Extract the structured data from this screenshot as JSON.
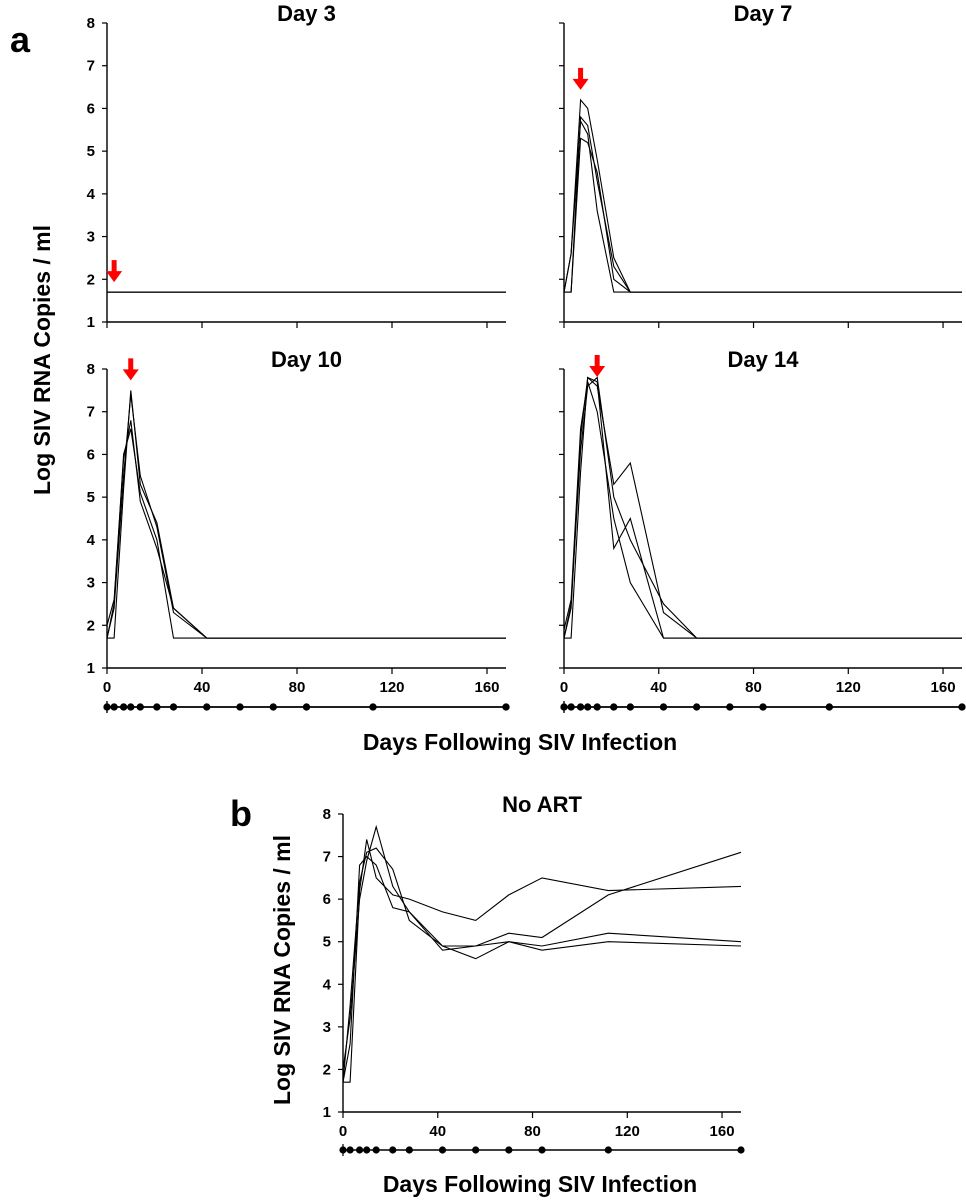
{
  "figure": {
    "panel_a_letter": "a",
    "panel_b_letter": "b",
    "ylabel": "Log SIV RNA Copies / ml",
    "xlabel": "Days Following SIV Infection"
  },
  "colors": {
    "line": "#000000",
    "arrow": "#ff0000",
    "dot": "#000000"
  },
  "chart_data": [
    {
      "type": "line",
      "title": "Day 3",
      "xlim": [
        0,
        168
      ],
      "ylim": [
        1,
        8
      ],
      "xticks": [
        0,
        40,
        80,
        120,
        160
      ],
      "yticks": [
        1,
        2,
        3,
        4,
        5,
        6,
        7,
        8
      ],
      "show_x_ticklabels": false,
      "show_y_ticklabels": true,
      "art_start_day": 3,
      "sample_days": [
        0,
        3,
        7,
        10,
        14,
        21,
        28,
        42,
        56,
        70,
        84,
        112,
        168
      ],
      "series": [
        {
          "x": [
            0,
            168
          ],
          "y": [
            1.7,
            1.7
          ]
        },
        {
          "x": [
            0,
            168
          ],
          "y": [
            1.7,
            1.7
          ]
        },
        {
          "x": [
            0,
            168
          ],
          "y": [
            1.7,
            1.7
          ]
        },
        {
          "x": [
            0,
            168
          ],
          "y": [
            1.7,
            1.7
          ]
        }
      ]
    },
    {
      "type": "line",
      "title": "Day 7",
      "xlim": [
        0,
        168
      ],
      "ylim": [
        1,
        8
      ],
      "xticks": [
        0,
        40,
        80,
        120,
        160
      ],
      "yticks": [
        1,
        2,
        3,
        4,
        5,
        6,
        7,
        8
      ],
      "show_x_ticklabels": false,
      "show_y_ticklabels": false,
      "art_start_day": 7,
      "sample_days": [
        0,
        3,
        7,
        10,
        14,
        21,
        28,
        42,
        56,
        70,
        84,
        112,
        168
      ],
      "series": [
        {
          "x": [
            0,
            3,
            7,
            10,
            14,
            21,
            28,
            168
          ],
          "y": [
            1.7,
            2.6,
            6.2,
            6.0,
            4.8,
            2.5,
            1.7,
            1.7
          ]
        },
        {
          "x": [
            0,
            3,
            7,
            10,
            14,
            21,
            28,
            168
          ],
          "y": [
            1.7,
            1.7,
            5.8,
            5.6,
            4.3,
            2.3,
            1.7,
            1.7
          ]
        },
        {
          "x": [
            0,
            3,
            7,
            10,
            14,
            21,
            28,
            168
          ],
          "y": [
            1.7,
            1.7,
            5.3,
            5.2,
            4.5,
            2.0,
            1.7,
            1.7
          ]
        },
        {
          "x": [
            0,
            3,
            7,
            10,
            14,
            21,
            28,
            168
          ],
          "y": [
            1.7,
            2.6,
            5.7,
            5.4,
            3.6,
            1.7,
            1.7,
            1.7
          ]
        }
      ]
    },
    {
      "type": "line",
      "title": "Day 10",
      "xlim": [
        0,
        168
      ],
      "ylim": [
        1,
        8
      ],
      "xticks": [
        0,
        40,
        80,
        120,
        160
      ],
      "yticks": [
        1,
        2,
        3,
        4,
        5,
        6,
        7,
        8
      ],
      "show_x_ticklabels": true,
      "show_y_ticklabels": true,
      "art_start_day": 10,
      "sample_days": [
        0,
        3,
        7,
        10,
        14,
        21,
        28,
        42,
        56,
        70,
        84,
        112,
        168
      ],
      "series": [
        {
          "x": [
            0,
            3,
            7,
            10,
            14,
            21,
            28,
            42,
            168
          ],
          "y": [
            1.7,
            1.7,
            5.2,
            7.5,
            5.3,
            4.4,
            2.4,
            1.7,
            1.7
          ]
        },
        {
          "x": [
            0,
            3,
            7,
            10,
            14,
            21,
            28,
            42,
            168
          ],
          "y": [
            1.7,
            2.5,
            6.0,
            6.6,
            5.1,
            4.0,
            1.7,
            1.7,
            1.7
          ]
        },
        {
          "x": [
            0,
            3,
            7,
            10,
            14,
            21,
            28,
            42,
            168
          ],
          "y": [
            2.0,
            2.6,
            5.9,
            6.8,
            4.9,
            3.8,
            2.4,
            1.7,
            1.7
          ]
        },
        {
          "x": [
            0,
            3,
            7,
            10,
            14,
            21,
            28,
            42,
            168
          ],
          "y": [
            1.7,
            2.4,
            5.5,
            7.4,
            5.5,
            4.3,
            2.3,
            1.7,
            1.7
          ]
        }
      ]
    },
    {
      "type": "line",
      "title": "Day 14",
      "xlim": [
        0,
        168
      ],
      "ylim": [
        1,
        8
      ],
      "xticks": [
        0,
        40,
        80,
        120,
        160
      ],
      "yticks": [
        1,
        2,
        3,
        4,
        5,
        6,
        7,
        8
      ],
      "show_x_ticklabels": true,
      "show_y_ticklabels": false,
      "art_start_day": 14,
      "sample_days": [
        0,
        3,
        7,
        10,
        14,
        21,
        28,
        42,
        56,
        70,
        84,
        112,
        168
      ],
      "series": [
        {
          "x": [
            0,
            3,
            7,
            10,
            14,
            21,
            28,
            42,
            56,
            168
          ],
          "y": [
            1.7,
            1.7,
            5.6,
            7.8,
            7.6,
            5.3,
            5.8,
            2.3,
            1.7,
            1.7
          ]
        },
        {
          "x": [
            0,
            3,
            7,
            10,
            14,
            21,
            28,
            42,
            56,
            168
          ],
          "y": [
            1.7,
            2.4,
            6.4,
            7.8,
            7.7,
            3.8,
            4.5,
            1.7,
            1.7,
            1.7
          ]
        },
        {
          "x": [
            0,
            3,
            7,
            10,
            14,
            21,
            28,
            42,
            56,
            168
          ],
          "y": [
            1.9,
            2.6,
            6.6,
            7.7,
            7.0,
            4.5,
            3.0,
            1.7,
            1.7,
            1.7
          ]
        },
        {
          "x": [
            0,
            3,
            7,
            10,
            14,
            21,
            28,
            42,
            56,
            168
          ],
          "y": [
            1.7,
            2.5,
            6.1,
            7.6,
            7.8,
            5.0,
            4.0,
            2.5,
            1.7,
            1.7
          ]
        }
      ]
    },
    {
      "type": "line",
      "title": "No ART",
      "xlim": [
        0,
        168
      ],
      "ylim": [
        1,
        8
      ],
      "xticks": [
        0,
        40,
        80,
        120,
        160
      ],
      "yticks": [
        1,
        2,
        3,
        4,
        5,
        6,
        7,
        8
      ],
      "show_x_ticklabels": true,
      "show_y_ticklabels": true,
      "sample_days": [
        0,
        3,
        7,
        10,
        14,
        21,
        28,
        42,
        56,
        70,
        84,
        112,
        168
      ],
      "series": [
        {
          "x": [
            0,
            3,
            7,
            10,
            14,
            21,
            28,
            42,
            56,
            70,
            84,
            112,
            168
          ],
          "y": [
            1.7,
            1.7,
            6.2,
            7.4,
            6.5,
            6.1,
            6.0,
            5.7,
            5.5,
            6.1,
            6.5,
            6.2,
            6.3
          ]
        },
        {
          "x": [
            0,
            3,
            7,
            10,
            14,
            21,
            28,
            42,
            56,
            70,
            84,
            112,
            168
          ],
          "y": [
            2.0,
            3.2,
            6.0,
            6.9,
            7.7,
            6.3,
            5.7,
            4.8,
            4.9,
            5.2,
            5.1,
            6.1,
            7.1
          ]
        },
        {
          "x": [
            0,
            3,
            7,
            10,
            14,
            21,
            28,
            42,
            56,
            70,
            84,
            112,
            168
          ],
          "y": [
            1.7,
            2.6,
            6.8,
            7.0,
            6.8,
            5.8,
            5.7,
            4.9,
            4.9,
            5.0,
            4.8,
            5.0,
            4.9
          ]
        },
        {
          "x": [
            0,
            3,
            7,
            10,
            14,
            21,
            28,
            42,
            56,
            70,
            84,
            112,
            168
          ],
          "y": [
            1.7,
            3.5,
            6.4,
            7.1,
            7.2,
            6.7,
            5.5,
            4.9,
            4.6,
            5.0,
            4.9,
            5.2,
            5.0
          ]
        }
      ]
    }
  ]
}
